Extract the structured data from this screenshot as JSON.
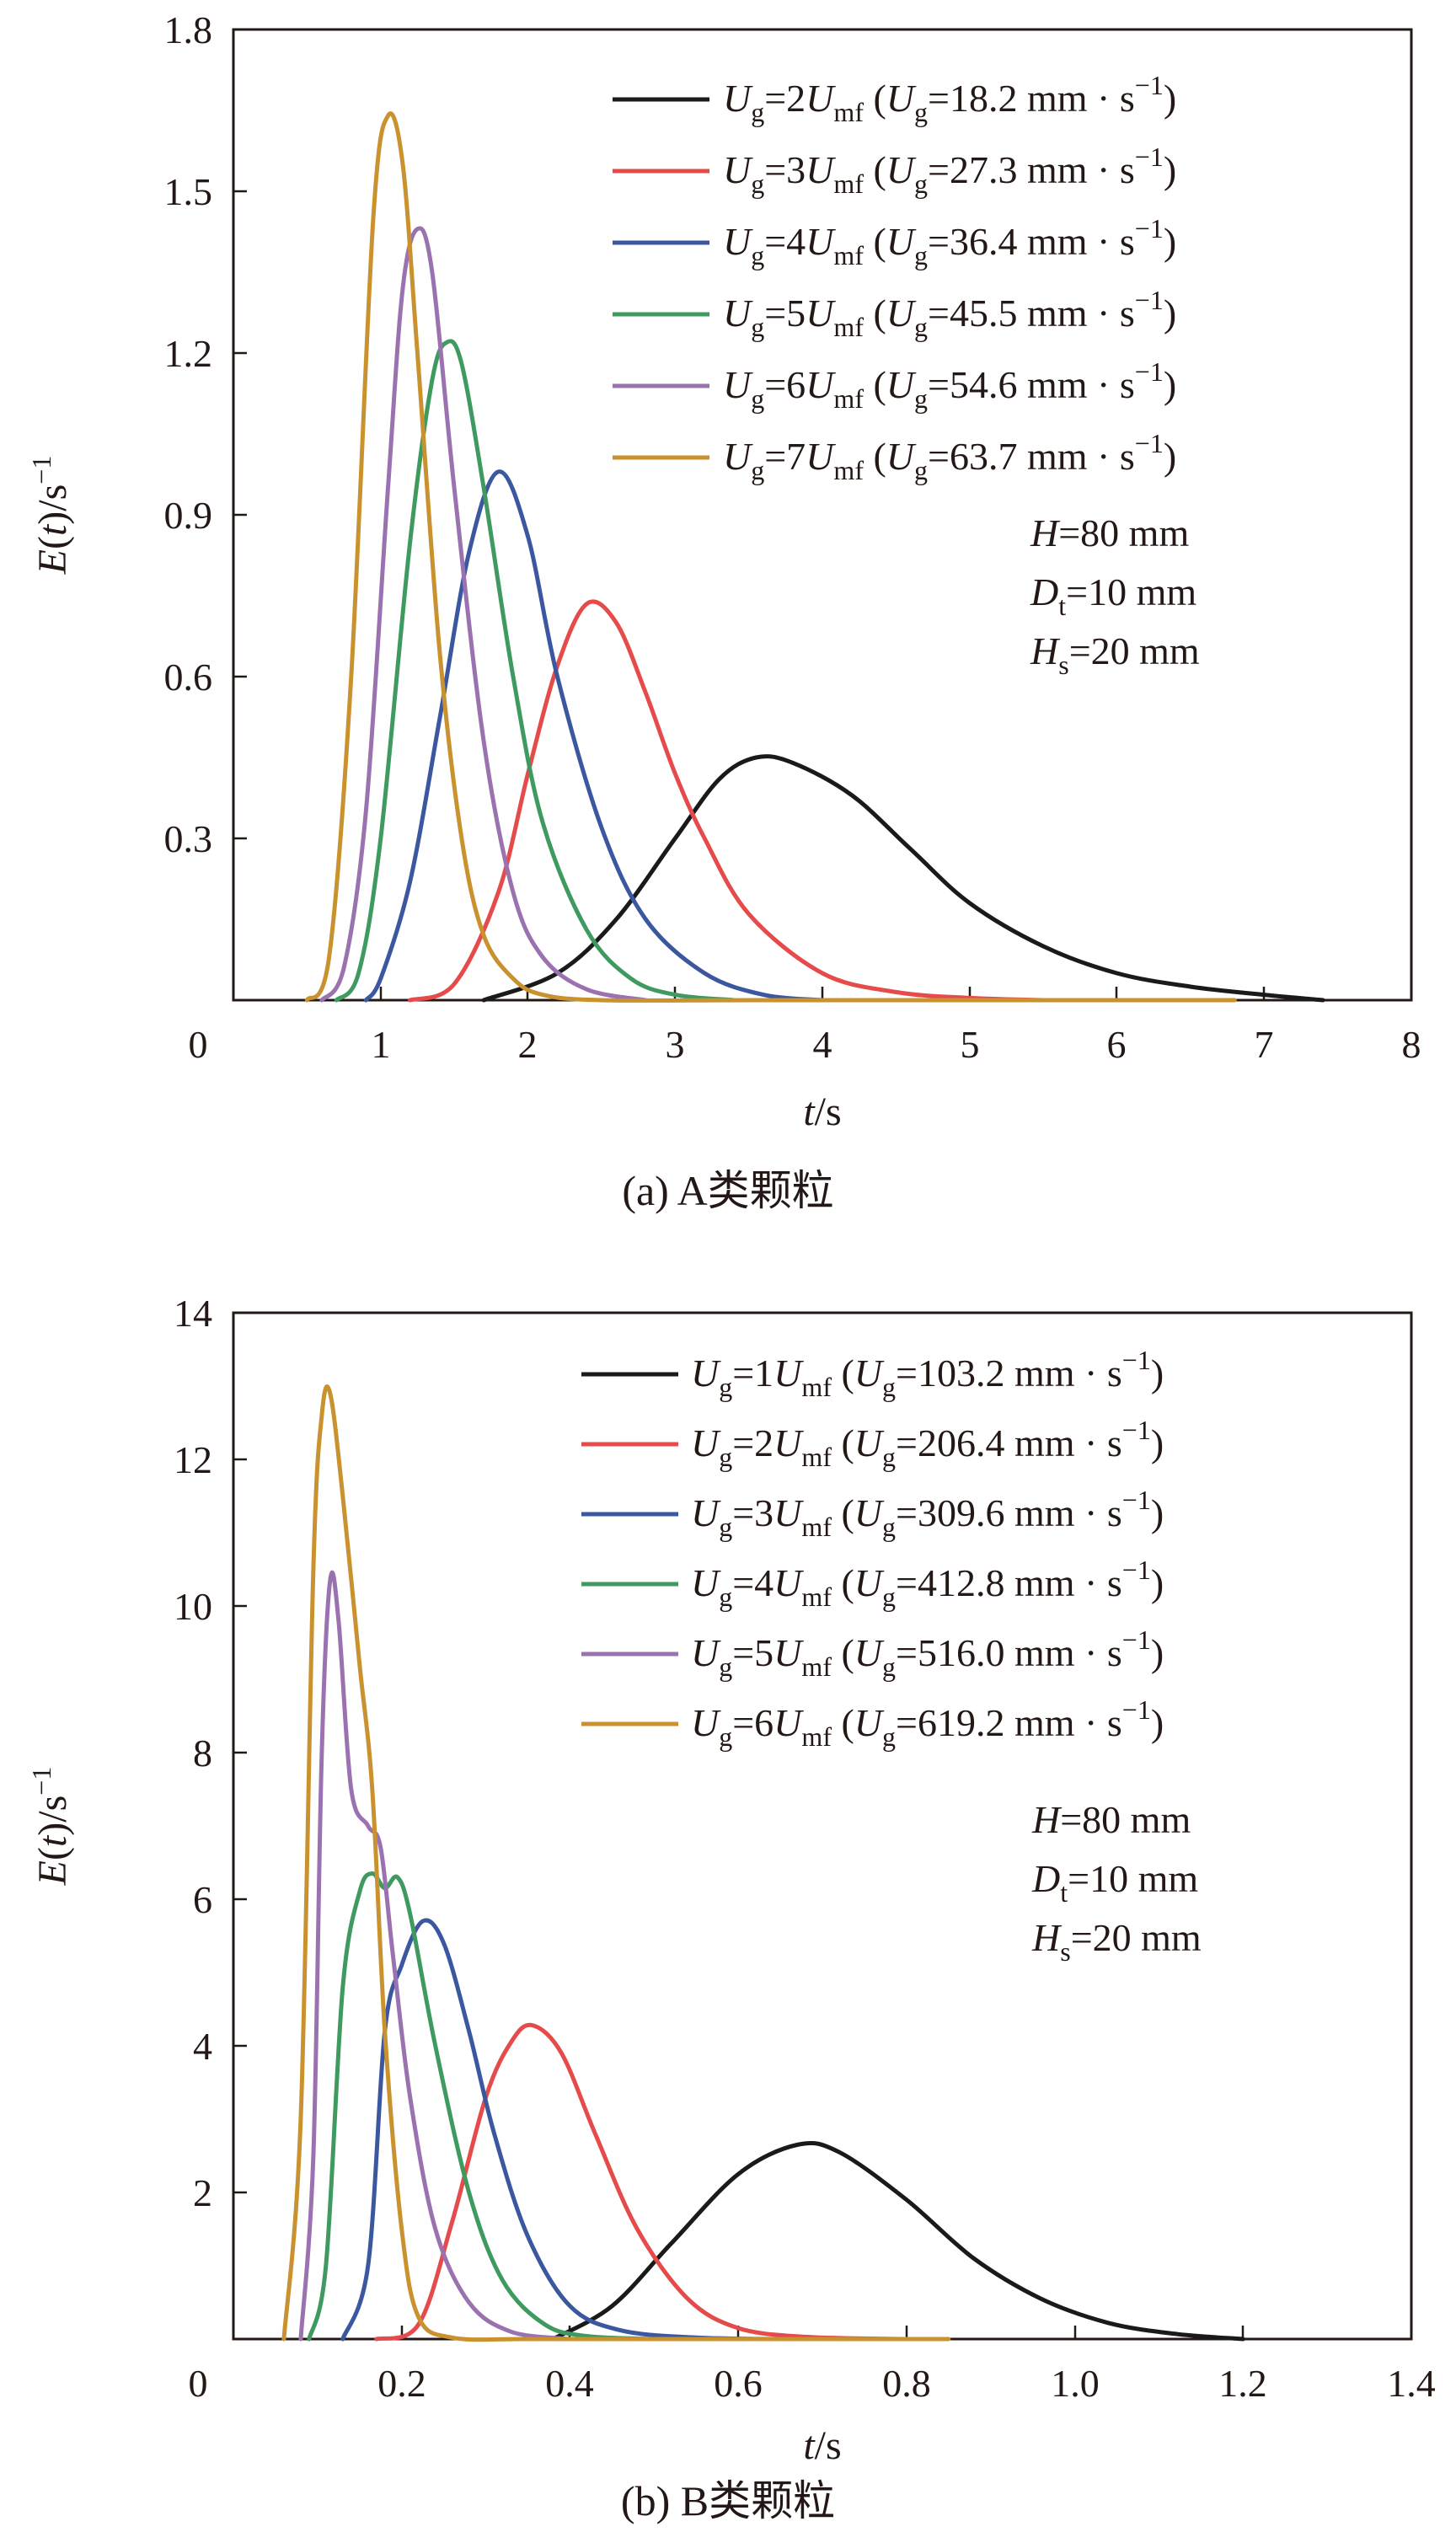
{
  "figure_a": {
    "caption": "(a) A类颗粒",
    "chart_data": {
      "type": "line",
      "xlabel": "t/s",
      "ylabel": "E(t)/s^-1",
      "xlim": [
        0,
        8
      ],
      "ylim": [
        0,
        1.8
      ],
      "x_ticks": [
        0,
        1,
        2,
        3,
        4,
        5,
        6,
        7,
        8
      ],
      "x_tick_labels": [
        "0",
        "1",
        "2",
        "3",
        "4",
        "5",
        "6",
        "7",
        "8"
      ],
      "y_ticks": [
        0.3,
        0.6,
        0.9,
        1.2,
        1.5,
        1.8
      ],
      "y_tick_labels": [
        "0.3",
        "0.6",
        "0.9",
        "1.2",
        "1.5",
        "1.8"
      ],
      "annotations": {
        "H": "=80 mm",
        "Dt": "=10 mm",
        "Hs": "=20 mm"
      },
      "series": [
        {
          "name": "Ug=2Umf",
          "multiple": "2",
          "ug_value": "=18.2 mm · s",
          "color": "#1a1a1a",
          "x": [
            1.7,
            2.2,
            2.6,
            3.0,
            3.3,
            3.55,
            3.8,
            4.2,
            4.6,
            5.0,
            5.5,
            6.0,
            6.5,
            7.0,
            7.4
          ],
          "y": [
            0.0,
            0.05,
            0.15,
            0.3,
            0.41,
            0.45,
            0.44,
            0.38,
            0.28,
            0.18,
            0.1,
            0.05,
            0.025,
            0.01,
            0.0
          ]
        },
        {
          "name": "Ug=3Umf",
          "multiple": "3",
          "ug_value": "=27.3 mm · s",
          "color": "#e64b4b",
          "x": [
            1.2,
            1.5,
            1.8,
            2.0,
            2.2,
            2.4,
            2.6,
            2.8,
            3.0,
            3.2,
            3.5,
            4.0,
            4.5,
            5.0,
            5.5
          ],
          "y": [
            0.0,
            0.03,
            0.2,
            0.42,
            0.62,
            0.735,
            0.7,
            0.57,
            0.42,
            0.3,
            0.16,
            0.05,
            0.015,
            0.004,
            0.0
          ]
        },
        {
          "name": "Ug=4Umf",
          "multiple": "4",
          "ug_value": "=36.4 mm · s",
          "color": "#3b57a0",
          "x": [
            0.9,
            1.0,
            1.2,
            1.4,
            1.6,
            1.8,
            2.0,
            2.2,
            2.5,
            2.8,
            3.2,
            3.6,
            4.0
          ],
          "y": [
            0.0,
            0.04,
            0.22,
            0.52,
            0.83,
            0.98,
            0.86,
            0.6,
            0.32,
            0.15,
            0.05,
            0.01,
            0.0
          ]
        },
        {
          "name": "Ug=5Umf",
          "multiple": "5",
          "ug_value": "=45.5 mm · s",
          "color": "#3f9a60",
          "x": [
            0.7,
            0.85,
            1.0,
            1.2,
            1.35,
            1.45,
            1.55,
            1.7,
            1.9,
            2.1,
            2.4,
            2.7,
            3.0,
            3.4
          ],
          "y": [
            0.0,
            0.05,
            0.3,
            0.85,
            1.15,
            1.22,
            1.18,
            0.95,
            0.6,
            0.33,
            0.13,
            0.04,
            0.01,
            0.0
          ]
        },
        {
          "name": "Ug=6Umf",
          "multiple": "6",
          "ug_value": "=54.6 mm · s",
          "color": "#9b72b0",
          "x": [
            0.6,
            0.75,
            0.9,
            1.05,
            1.15,
            1.25,
            1.35,
            1.5,
            1.7,
            1.9,
            2.1,
            2.4,
            2.8
          ],
          "y": [
            0.0,
            0.06,
            0.35,
            0.95,
            1.32,
            1.43,
            1.35,
            0.95,
            0.48,
            0.2,
            0.08,
            0.02,
            0.0
          ]
        },
        {
          "name": "Ug=7Umf",
          "multiple": "7",
          "ug_value": "=63.7 mm · s",
          "color": "#c9922f",
          "x": [
            0.5,
            0.65,
            0.8,
            0.95,
            1.05,
            1.15,
            1.25,
            1.4,
            1.55,
            1.7,
            1.9,
            2.1,
            2.5,
            3.5,
            5.0,
            6.8
          ],
          "y": [
            0.0,
            0.08,
            0.6,
            1.45,
            1.64,
            1.55,
            1.2,
            0.65,
            0.3,
            0.12,
            0.04,
            0.01,
            0.0,
            0.0,
            0.0,
            0.0
          ]
        }
      ]
    }
  },
  "figure_b": {
    "caption": "(b) B类颗粒",
    "chart_data": {
      "type": "line",
      "xlabel": "t/s",
      "ylabel": "E(t)/s^-1",
      "xlim": [
        0,
        1.4
      ],
      "ylim": [
        0,
        14
      ],
      "x_ticks": [
        0,
        0.2,
        0.4,
        0.6,
        0.8,
        1.0,
        1.2,
        1.4
      ],
      "x_tick_labels": [
        "0",
        "0.2",
        "0.4",
        "0.6",
        "0.8",
        "1.0",
        "1.2",
        "1.4"
      ],
      "y_ticks": [
        2,
        4,
        6,
        8,
        10,
        12,
        14
      ],
      "y_tick_labels": [
        "2",
        "4",
        "6",
        "8",
        "10",
        "12",
        "14"
      ],
      "annotations": {
        "H": "=80 mm",
        "Dt": "=10 mm",
        "Hs": "=20 mm"
      },
      "series": [
        {
          "name": "Ug=1Umf",
          "multiple": "1",
          "ug_value": "=103.2 mm · s",
          "color": "#1a1a1a",
          "x": [
            0.38,
            0.45,
            0.52,
            0.6,
            0.67,
            0.72,
            0.8,
            0.88,
            0.96,
            1.04,
            1.12,
            1.2
          ],
          "y": [
            0.0,
            0.45,
            1.3,
            2.25,
            2.65,
            2.55,
            1.9,
            1.1,
            0.55,
            0.22,
            0.07,
            0.0
          ]
        },
        {
          "name": "Ug=2Umf",
          "multiple": "2",
          "ug_value": "=206.4 mm · s",
          "color": "#e64b4b",
          "x": [
            0.17,
            0.22,
            0.26,
            0.3,
            0.33,
            0.355,
            0.39,
            0.43,
            0.48,
            0.54,
            0.6,
            0.68,
            0.8
          ],
          "y": [
            0.0,
            0.2,
            1.6,
            3.3,
            4.05,
            4.28,
            3.9,
            2.8,
            1.5,
            0.55,
            0.15,
            0.03,
            0.0
          ]
        },
        {
          "name": "Ug=3Umf",
          "multiple": "3",
          "ug_value": "=309.6 mm · s",
          "color": "#3b57a0",
          "x": [
            0.13,
            0.16,
            0.18,
            0.2,
            0.225,
            0.25,
            0.28,
            0.31,
            0.35,
            0.4,
            0.46,
            0.55,
            0.65
          ],
          "y": [
            0.0,
            1.0,
            4.2,
            5.1,
            5.7,
            5.4,
            4.2,
            2.8,
            1.4,
            0.45,
            0.12,
            0.02,
            0.0
          ]
        },
        {
          "name": "Ug=4Umf",
          "multiple": "4",
          "ug_value": "=412.8 mm · s",
          "color": "#3f9a60",
          "x": [
            0.09,
            0.11,
            0.13,
            0.15,
            0.165,
            0.18,
            0.195,
            0.21,
            0.24,
            0.28,
            0.32,
            0.37,
            0.42,
            0.5
          ],
          "y": [
            0.0,
            1.0,
            4.8,
            6.1,
            6.35,
            6.15,
            6.3,
            5.8,
            4.0,
            2.0,
            0.8,
            0.2,
            0.04,
            0.0
          ]
        },
        {
          "name": "Ug=5Umf",
          "multiple": "5",
          "ug_value": "=516.0 mm · s",
          "color": "#9b72b0",
          "x": [
            0.08,
            0.095,
            0.105,
            0.115,
            0.125,
            0.14,
            0.16,
            0.175,
            0.19,
            0.21,
            0.24,
            0.28,
            0.33,
            0.4
          ],
          "y": [
            0.0,
            2.5,
            8.0,
            10.35,
            9.8,
            7.5,
            7.0,
            6.7,
            5.2,
            3.3,
            1.5,
            0.5,
            0.1,
            0.0
          ]
        },
        {
          "name": "Ug=6Umf",
          "multiple": "6",
          "ug_value": "=619.2 mm · s",
          "color": "#c9922f",
          "x": [
            0.06,
            0.08,
            0.095,
            0.105,
            0.115,
            0.13,
            0.15,
            0.165,
            0.18,
            0.2,
            0.22,
            0.26,
            0.35,
            0.5,
            0.7,
            0.85
          ],
          "y": [
            0.0,
            3.0,
            10.5,
            12.6,
            12.9,
            11.5,
            9.2,
            7.5,
            4.2,
            1.5,
            0.3,
            0.02,
            0.0,
            0.0,
            0.0,
            0.0
          ]
        }
      ]
    }
  }
}
